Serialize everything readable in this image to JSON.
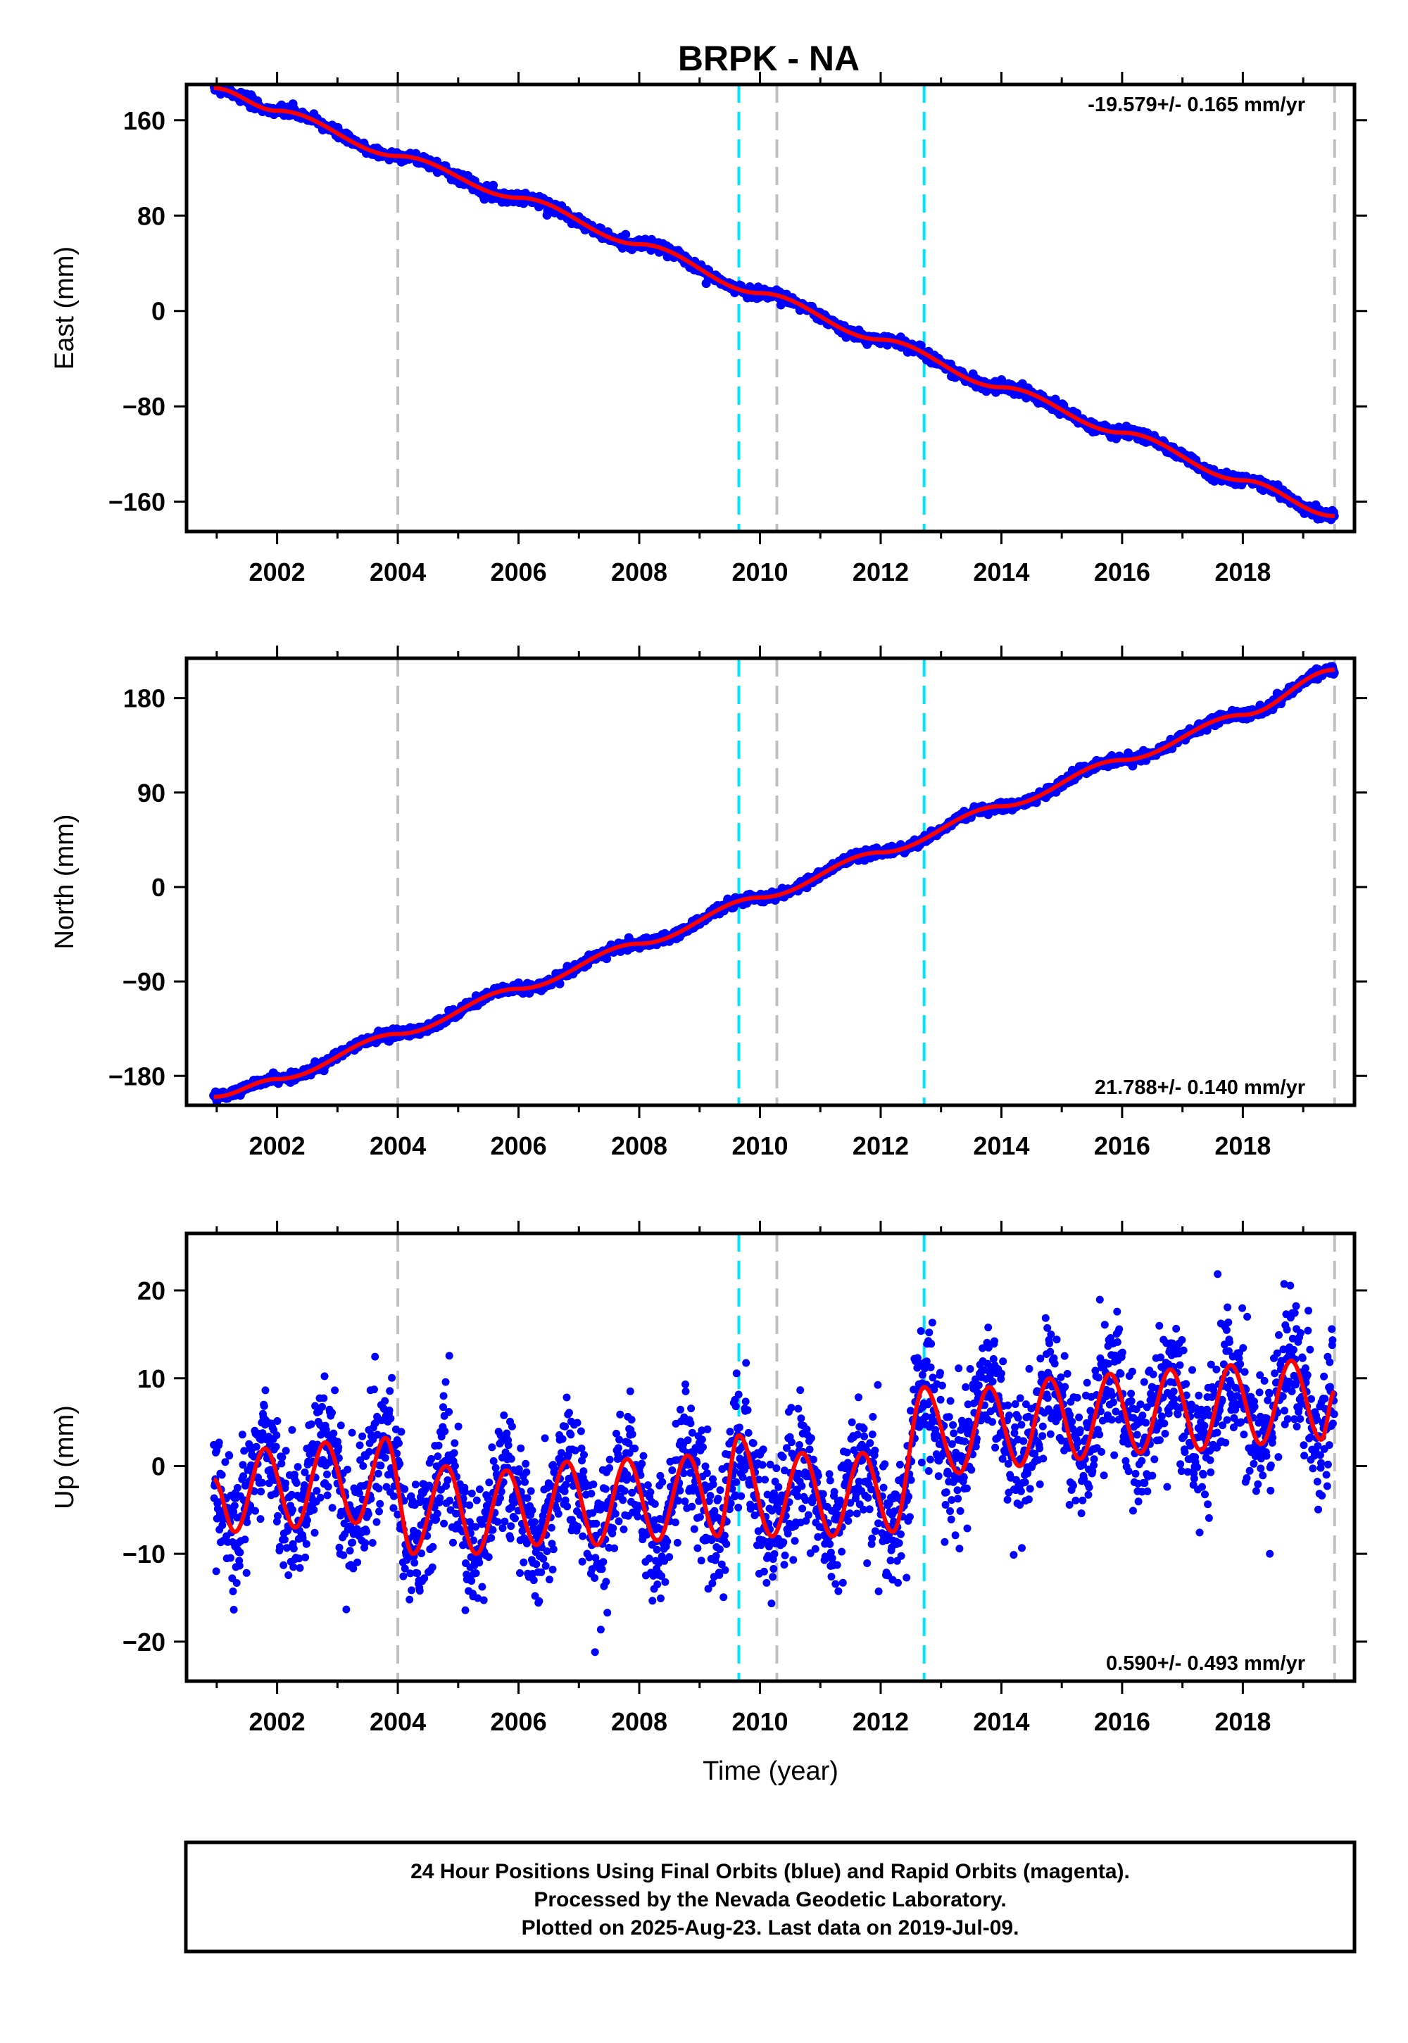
{
  "title": "BRPK - NA",
  "footer": {
    "lines": [
      "24 Hour Positions Using Final Orbits (blue) and Rapid Orbits (magenta).",
      "Processed by the Nevada Geodetic Laboratory.",
      "Plotted on 2025-Aug-23. Last data on 2019-Jul-09."
    ]
  },
  "colors": {
    "data_points": "#0000ff",
    "model_fit": "#ff0000",
    "equipment_change": "#00e5ff",
    "other_event": "#c0c0c0"
  },
  "chart_data": [
    {
      "type": "scatter",
      "component": "east",
      "ylabel": "East (mm)",
      "xlabel": "",
      "xlim": [
        2000.5,
        2019.85
      ],
      "ylim": [
        -185,
        190
      ],
      "xticks": [
        2002,
        2004,
        2006,
        2008,
        2010,
        2012,
        2014,
        2016,
        2018
      ],
      "yticks": [
        -160,
        -80,
        0,
        80,
        160
      ],
      "rate_label": "-19.579+/- 0.165 mm/yr",
      "rate_position": "top-right",
      "series": [
        {
          "name": "Final Orbits",
          "x": [
            2000.95,
            2002.0,
            2004.0,
            2006.0,
            2008.0,
            2010.0,
            2012.0,
            2014.0,
            2016.0,
            2018.0,
            2019.52
          ],
          "values": [
            187,
            168,
            130,
            95,
            56,
            15,
            -24,
            -64,
            -102,
            -142,
            -172
          ]
        }
      ],
      "events": [
        {
          "x": 2004.0,
          "kind": "other_event"
        },
        {
          "x": 2009.65,
          "kind": "equipment_change"
        },
        {
          "x": 2010.28,
          "kind": "other_event"
        },
        {
          "x": 2012.72,
          "kind": "equipment_change"
        },
        {
          "x": 2019.52,
          "kind": "other_event"
        }
      ],
      "grid": false
    },
    {
      "type": "scatter",
      "component": "north",
      "ylabel": "North (mm)",
      "xlabel": "",
      "xlim": [
        2000.5,
        2019.85
      ],
      "ylim": [
        -208,
        218
      ],
      "xticks": [
        2002,
        2004,
        2006,
        2008,
        2010,
        2012,
        2014,
        2016,
        2018
      ],
      "yticks": [
        -180,
        -90,
        0,
        90,
        180
      ],
      "rate_label": "21.788+/- 0.140 mm/yr",
      "rate_position": "bottom-right",
      "series": [
        {
          "name": "Final Orbits",
          "x": [
            2000.95,
            2002.0,
            2004.0,
            2006.0,
            2008.0,
            2010.0,
            2012.0,
            2014.0,
            2016.0,
            2018.0,
            2019.52
          ],
          "values": [
            -200,
            -183,
            -140,
            -97,
            -54,
            -10,
            33,
            77,
            121,
            164,
            207
          ]
        }
      ],
      "events": [
        {
          "x": 2004.0,
          "kind": "other_event"
        },
        {
          "x": 2009.65,
          "kind": "equipment_change"
        },
        {
          "x": 2010.28,
          "kind": "other_event"
        },
        {
          "x": 2012.72,
          "kind": "equipment_change"
        },
        {
          "x": 2019.52,
          "kind": "other_event"
        }
      ],
      "grid": false
    },
    {
      "type": "scatter",
      "component": "up",
      "ylabel": "Up (mm)",
      "xlabel": "Time (year)",
      "xlim": [
        2000.5,
        2019.85
      ],
      "ylim": [
        -24.5,
        26.5
      ],
      "xticks": [
        2002,
        2004,
        2006,
        2008,
        2010,
        2012,
        2014,
        2016,
        2018
      ],
      "yticks": [
        -20,
        -10,
        0,
        10,
        20
      ],
      "rate_label": "0.590+/- 0.493 mm/yr",
      "rate_position": "bottom-right",
      "series": [
        {
          "name": "Final Orbits",
          "x": [
            2000.95,
            2001.3,
            2001.8,
            2002.3,
            2002.8,
            2003.3,
            2003.8,
            2004.25,
            2004.8,
            2005.3,
            2005.8,
            2006.3,
            2006.8,
            2007.3,
            2007.8,
            2008.3,
            2008.8,
            2009.3,
            2009.65,
            2010.2,
            2010.7,
            2011.2,
            2011.7,
            2012.2,
            2012.72,
            2013.3,
            2013.8,
            2014.3,
            2014.8,
            2015.3,
            2015.8,
            2016.3,
            2016.8,
            2017.3,
            2017.8,
            2018.3,
            2018.8,
            2019.3,
            2019.52
          ],
          "values": [
            -1.5,
            -7.5,
            2.0,
            -7.0,
            2.7,
            -6.5,
            3.2,
            -10.0,
            0.0,
            -10.0,
            -0.5,
            -9.0,
            0.5,
            -9.0,
            0.8,
            -8.5,
            1.2,
            -8.0,
            3.5,
            -8.0,
            1.5,
            -8.0,
            1.5,
            -7.5,
            9.0,
            -0.8,
            9.0,
            0.0,
            10.0,
            0.8,
            10.5,
            1.5,
            11.0,
            1.8,
            11.5,
            2.5,
            12.0,
            3.0,
            8.5
          ]
        }
      ],
      "events": [
        {
          "x": 2004.0,
          "kind": "other_event"
        },
        {
          "x": 2009.65,
          "kind": "equipment_change"
        },
        {
          "x": 2010.28,
          "kind": "other_event"
        },
        {
          "x": 2012.72,
          "kind": "equipment_change"
        },
        {
          "x": 2019.52,
          "kind": "other_event"
        }
      ],
      "grid": false
    }
  ]
}
